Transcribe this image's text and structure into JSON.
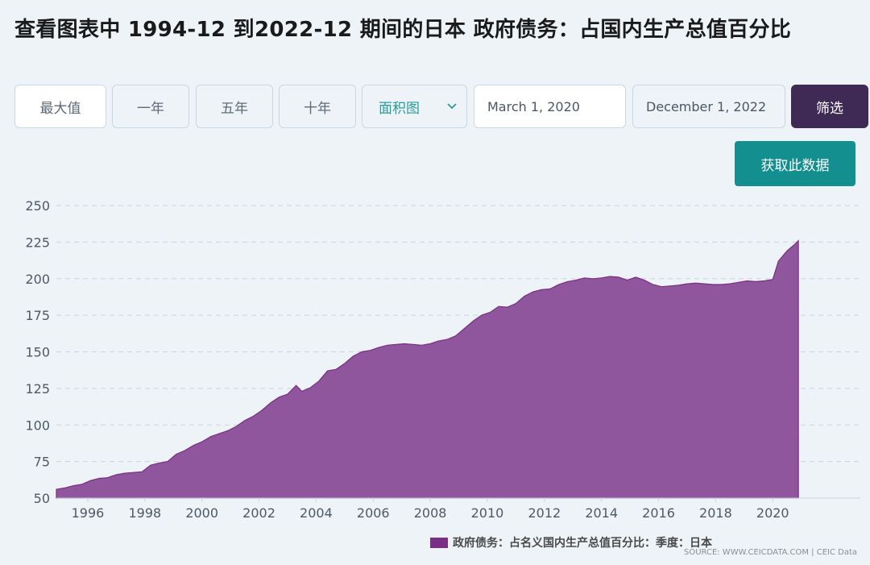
{
  "header": {
    "title": "查看图表中 1994-12 到2022-12 期间的日本 政府债务：占国内生产总值百分比"
  },
  "controls": {
    "range_buttons": [
      "最大值",
      "一年",
      "五年",
      "十年"
    ],
    "chart_type": "面积图",
    "start_date": "March 1, 2020",
    "end_date": "December 1, 2022",
    "filter_label": "筛选",
    "get_data_label": "获取此数据"
  },
  "legend": {
    "label": "政府债务：占名义国内生产总值百分比：季度：日本",
    "color": "#7a2e86"
  },
  "source": "SOURCE: WWW.CEICDATA.COM | CEIC Data",
  "colors": {
    "area_fill": "#8f559d",
    "area_stroke": "#7a2e86",
    "filter_button": "#3f2a56",
    "get_data_button": "#148f8f",
    "accent_text": "#2a9b9b"
  },
  "chart_data": {
    "type": "area",
    "title": "",
    "xlabel": "",
    "ylabel": "",
    "ylim": [
      50,
      250
    ],
    "yticks": [
      50,
      75,
      100,
      125,
      150,
      175,
      200,
      225,
      250
    ],
    "xlim": [
      1994.9,
      2022.9
    ],
    "xticks": [
      1996,
      1998,
      2000,
      2002,
      2004,
      2006,
      2008,
      2010,
      2012,
      2014,
      2016,
      2018,
      2020
    ],
    "grid": "horizontal dashed",
    "legend_position": "bottom",
    "series": [
      {
        "name": "政府债务：占名义国内生产总值百分比：季度：日本",
        "x": [
          1994.9,
          1995.2,
          1995.5,
          1995.8,
          1996.1,
          1996.4,
          1996.7,
          1997.0,
          1997.3,
          1997.6,
          1997.9,
          1998.2,
          1998.5,
          1998.8,
          1999.1,
          1999.4,
          1999.7,
          2000.0,
          2000.3,
          2000.6,
          2000.9,
          2001.2,
          2001.5,
          2001.8,
          2002.1,
          2002.4,
          2002.7,
          2003.0,
          2003.3,
          2003.5,
          2003.8,
          2004.1,
          2004.4,
          2004.7,
          2005.0,
          2005.3,
          2005.6,
          2005.9,
          2006.2,
          2006.5,
          2006.8,
          2007.1,
          2007.4,
          2007.7,
          2008.0,
          2008.3,
          2008.6,
          2008.9,
          2009.2,
          2009.5,
          2009.8,
          2010.1,
          2010.4,
          2010.7,
          2011.0,
          2011.3,
          2011.6,
          2011.9,
          2012.2,
          2012.5,
          2012.8,
          2013.1,
          2013.4,
          2013.7,
          2014.0,
          2014.3,
          2014.6,
          2014.9,
          2015.2,
          2015.5,
          2015.8,
          2016.1,
          2016.4,
          2016.7,
          2017.0,
          2017.3,
          2017.6,
          2017.9,
          2018.2,
          2018.5,
          2018.8,
          2019.1,
          2019.4,
          2019.7,
          2020.0,
          2020.2,
          2020.5,
          2020.8,
          2020.9
        ],
        "values": [
          56,
          57,
          58.5,
          59.5,
          62,
          63.5,
          64,
          66,
          67,
          67.5,
          68,
          72.5,
          74,
          75,
          80,
          82.5,
          86,
          88.5,
          92,
          94,
          96,
          99,
          103,
          106,
          110,
          115,
          119,
          121,
          127,
          123,
          125.5,
          130,
          137,
          138,
          142,
          147,
          150,
          151,
          153,
          154.5,
          155,
          155.5,
          155,
          154.5,
          155.5,
          157.5,
          158.5,
          161,
          166,
          171,
          175,
          177,
          181,
          180.5,
          183,
          188,
          191,
          192.5,
          193,
          196,
          198,
          199,
          200.5,
          200,
          200.5,
          201.5,
          201,
          199,
          201,
          199,
          196,
          194.5,
          195,
          195.5,
          196.5,
          197,
          196.5,
          196,
          196,
          196.5,
          197.5,
          198.5,
          198,
          198.5,
          199.5,
          212,
          219,
          224,
          226
        ]
      }
    ]
  }
}
